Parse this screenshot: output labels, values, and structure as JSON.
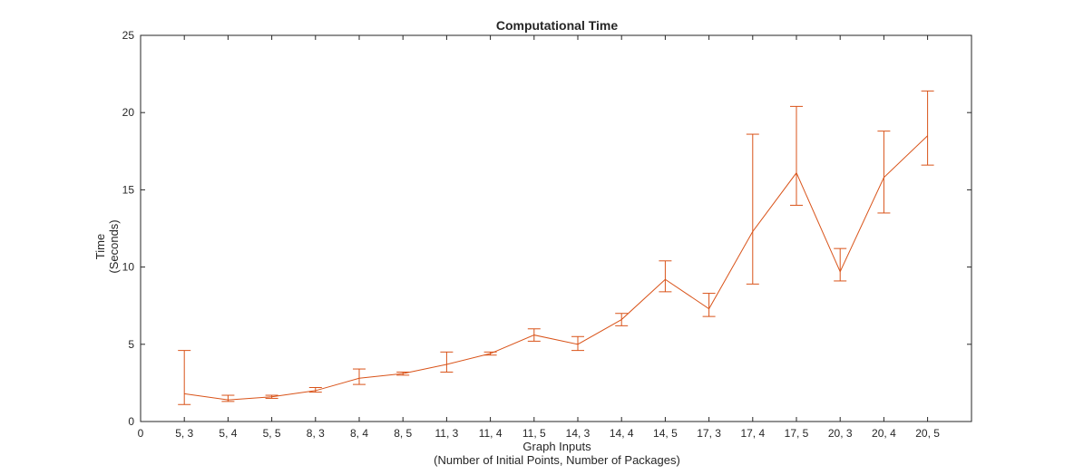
{
  "chart_data": {
    "type": "line",
    "title": "Computational Time",
    "xlabel": [
      "Graph Inputs",
      "(Number of Initial Points, Number of Packages)"
    ],
    "ylabel": [
      "Time",
      "(Seconds)"
    ],
    "ylim": [
      0,
      25
    ],
    "yticks": [
      0,
      5,
      10,
      15,
      20,
      25
    ],
    "x_zero_tick": "0",
    "categories": [
      "5, 3",
      "5, 4",
      "5, 5",
      "8, 3",
      "8, 4",
      "8, 5",
      "11, 3",
      "11, 4",
      "11, 5",
      "14, 3",
      "14, 4",
      "14, 5",
      "17, 3",
      "17, 4",
      "17, 5",
      "20, 3",
      "20, 4",
      "20, 5"
    ],
    "series": [
      {
        "color": "#d95319",
        "values": [
          1.8,
          1.4,
          1.6,
          2.0,
          2.8,
          3.1,
          3.7,
          4.4,
          5.6,
          5.0,
          6.6,
          9.2,
          7.3,
          12.3,
          16.1,
          9.7,
          15.8,
          18.5
        ],
        "error_upper": [
          4.6,
          1.7,
          1.7,
          2.2,
          3.4,
          3.2,
          4.5,
          4.5,
          6.0,
          5.5,
          7.0,
          10.4,
          8.3,
          18.6,
          20.4,
          11.2,
          18.8,
          21.4
        ],
        "error_lower": [
          1.1,
          1.3,
          1.5,
          1.9,
          2.4,
          3.0,
          3.2,
          4.3,
          5.2,
          4.6,
          6.2,
          8.4,
          6.8,
          8.9,
          14.0,
          9.1,
          13.5,
          16.6
        ]
      }
    ],
    "grid": false,
    "box": true
  }
}
